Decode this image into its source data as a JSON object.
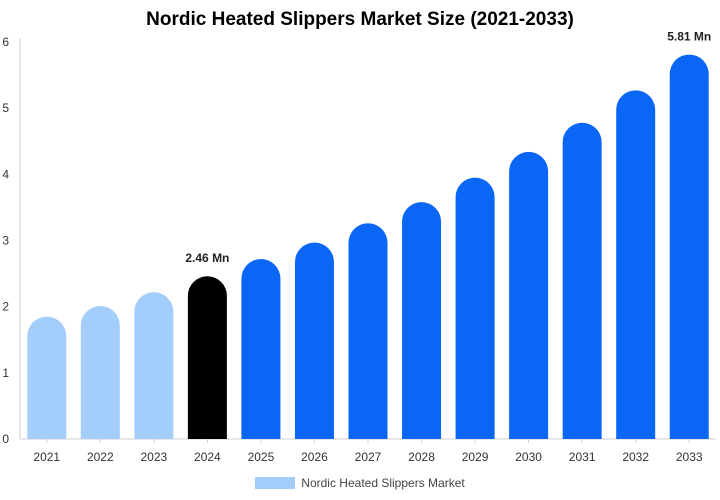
{
  "chart_data": {
    "type": "bar",
    "title": "Nordic Heated Slippers Market Size (2021-2033)",
    "categories": [
      "2021",
      "2022",
      "2023",
      "2024",
      "2025",
      "2026",
      "2027",
      "2028",
      "2029",
      "2030",
      "2031",
      "2032",
      "2033"
    ],
    "series": [
      {
        "name": "Nordic Heated Slippers Market",
        "values": [
          1.85,
          2.01,
          2.22,
          2.46,
          2.72,
          2.97,
          3.26,
          3.58,
          3.95,
          4.34,
          4.78,
          5.27,
          5.81
        ]
      }
    ],
    "bar_colors": [
      "#a3cdfb",
      "#a3cdfb",
      "#a3cdfb",
      "#000000",
      "#0a66f5",
      "#0a66f5",
      "#0a66f5",
      "#0a66f5",
      "#0a66f5",
      "#0a66f5",
      "#0a66f5",
      "#0a66f5",
      "#0a66f5"
    ],
    "data_labels": [
      {
        "index": 3,
        "text": "2.46 Mn"
      },
      {
        "index": 12,
        "text": "5.81 Mn"
      }
    ],
    "y_ticks": [
      "0",
      "1",
      "2",
      "3",
      "4",
      "5",
      "6"
    ],
    "ylim": [
      0,
      6
    ],
    "grid": false,
    "legend_position": "bottom",
    "legend_color": "#a3cdfb"
  }
}
